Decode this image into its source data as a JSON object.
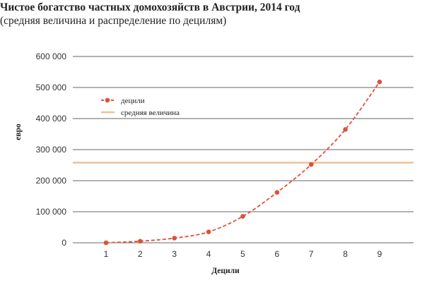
{
  "title": "Чистое богатство частных домохозяйств в Австрии, 2014 год",
  "subtitle": "(средняя величина и распределение по децилям)",
  "colors": {
    "series": "#e0503a",
    "mean": "#f0c19a",
    "grid": "#666666"
  },
  "chart_data": {
    "type": "line",
    "xlabel": "Децили",
    "ylabel": "евро",
    "x": [
      1,
      2,
      3,
      4,
      5,
      6,
      7,
      8,
      9
    ],
    "ylim": [
      0,
      600000
    ],
    "yticks": [
      0,
      100000,
      200000,
      300000,
      400000,
      500000,
      600000
    ],
    "ytick_labels": [
      "0",
      "100 000",
      "200 000",
      "300 000",
      "400 000",
      "500 000",
      "600 000"
    ],
    "series": [
      {
        "name": "децили",
        "style": "dashed line with circle markers",
        "values": [
          0,
          5000,
          15000,
          35000,
          85000,
          162000,
          252000,
          365000,
          518000
        ]
      }
    ],
    "reference_lines": [
      {
        "name": "средняя величина",
        "value": 258000
      }
    ],
    "legend": "top-left",
    "grid": "horizontal"
  }
}
